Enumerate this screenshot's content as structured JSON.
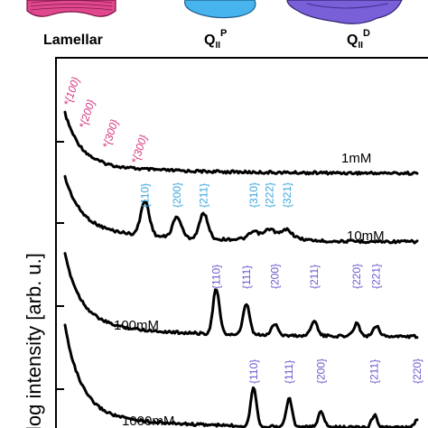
{
  "header": {
    "lamellar_label": "Lamellar",
    "qp_label": "Q",
    "qp_sub": "II",
    "qp_sup": "P",
    "qd_label": "Q",
    "qd_sub": "II",
    "qd_sup": "D"
  },
  "colors": {
    "lamellar": "#d6357f",
    "lamellar_shape": "#e0488e",
    "qp_annot": "#3aa6dc",
    "qp_shape": "#48b4ee",
    "qd_annot": "#6b5bcf",
    "qd_shape": "#7a60d8"
  },
  "chart_data": {
    "type": "line",
    "ylabel": "log intensity [arb. u.]",
    "xlabel": "",
    "series": [
      {
        "name": "1mM",
        "phase": "Lamellar",
        "baseline": 0.2,
        "annotations": [
          {
            "text": "*{100}",
            "q": 0.03
          },
          {
            "text": "*{200}",
            "q": 0.07
          },
          {
            "text": "*{300}",
            "q": 0.13
          },
          {
            "text": "*{300}",
            "q": 0.2
          }
        ]
      },
      {
        "name": "10mM",
        "phase": "QIIP",
        "baseline": 0.12,
        "annotations": [
          {
            "text": "{110}",
            "q": 0.235
          },
          {
            "text": "{200}",
            "q": 0.325
          },
          {
            "text": "{211}",
            "q": 0.4
          },
          {
            "text": "{310}",
            "q": 0.54
          },
          {
            "text": "{222}",
            "q": 0.585
          },
          {
            "text": "{321}",
            "q": 0.635
          }
        ]
      },
      {
        "name": "100mM",
        "phase": "QIID",
        "baseline": 0.1,
        "annotations": [
          {
            "text": "{110}",
            "q": 0.435
          },
          {
            "text": "{111}",
            "q": 0.52
          },
          {
            "text": "{200}",
            "q": 0.6
          },
          {
            "text": "{211}",
            "q": 0.71
          },
          {
            "text": "{220}",
            "q": 0.83
          },
          {
            "text": "{221}",
            "q": 0.885
          }
        ]
      },
      {
        "name": "1000mM",
        "phase": "QIID",
        "baseline": 0.05,
        "annotations": [
          {
            "text": "{110}",
            "q": 0.54
          },
          {
            "text": "{111}",
            "q": 0.64
          },
          {
            "text": "{200}",
            "q": 0.73
          },
          {
            "text": "{211}",
            "q": 0.88
          },
          {
            "text": "{220}",
            "q": 1.0
          }
        ]
      }
    ]
  }
}
